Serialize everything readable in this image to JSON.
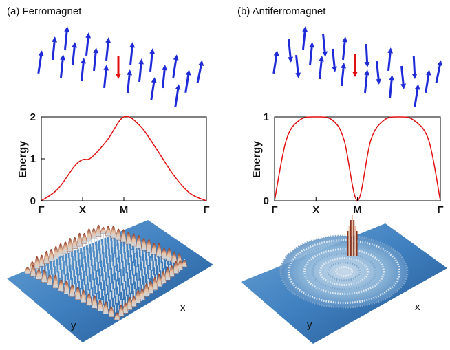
{
  "panels": [
    {
      "title": "(a) Ferromagnet",
      "spins": {
        "up_color": "#1f2bd6",
        "down_color": "#e01010",
        "down_count": 1
      },
      "surface": {
        "axis_x": "x",
        "axis_y": "y",
        "palette": [
          "#2f6fb0",
          "#5a9ad0",
          "#d9c9b7",
          "#e8a27a",
          "#8c3a22"
        ]
      }
    },
    {
      "title": "(b) Antiferromagnet",
      "spins": {
        "up_color": "#1f2bd6",
        "down_color": "#e01010",
        "down_count": 1
      },
      "surface": {
        "axis_x": "x",
        "axis_y": "y",
        "palette": [
          "#2f6fb0",
          "#5a9ad0",
          "#d9c9b7",
          "#e8a27a",
          "#8c3a22"
        ]
      }
    }
  ],
  "chart_data": [
    {
      "type": "line",
      "ylabel": "Energy",
      "xticks": [
        "Γ",
        "X",
        "M",
        "Γ"
      ],
      "yticks": [
        "0",
        "1",
        "2"
      ],
      "ylim": [
        0,
        2
      ],
      "line_color": "#e01010",
      "x": [
        0,
        0.1,
        0.2,
        0.25,
        0.3,
        0.4,
        0.5,
        0.6,
        0.7,
        0.8,
        0.9,
        1.0
      ],
      "y": [
        0,
        0.28,
        0.82,
        0.98,
        1.02,
        1.45,
        2.0,
        1.78,
        1.22,
        0.62,
        0.18,
        0
      ]
    },
    {
      "type": "line",
      "ylabel": "Energy",
      "xticks": [
        "Γ",
        "X",
        "M",
        "Γ"
      ],
      "yticks": [
        "0",
        "1"
      ],
      "ylim": [
        0,
        1
      ],
      "line_color": "#e01010",
      "x": [
        0,
        0.07,
        0.15,
        0.25,
        0.35,
        0.42,
        0.5,
        0.58,
        0.66,
        0.75,
        0.84,
        0.93,
        1.0
      ],
      "y": [
        0,
        0.72,
        0.96,
        1.0,
        0.96,
        0.72,
        0,
        0.72,
        0.96,
        1.0,
        0.96,
        0.72,
        0
      ]
    }
  ]
}
